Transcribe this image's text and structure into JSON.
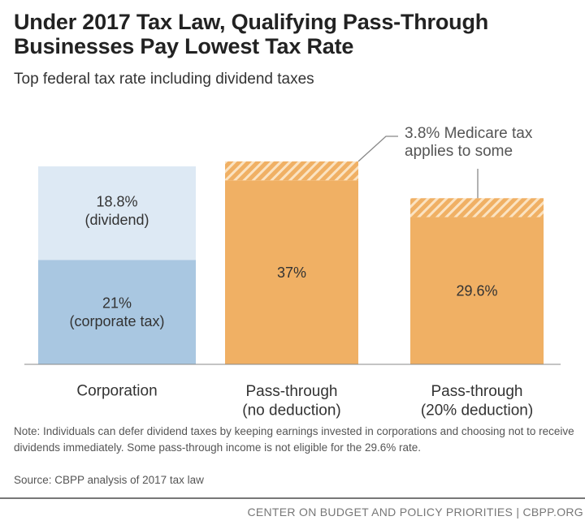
{
  "title_lines": [
    "Under 2017 Tax Law, Qualifying Pass-Through",
    "Businesses Pay Lowest Tax Rate"
  ],
  "subtitle": "Top federal tax rate including dividend taxes",
  "chart_data": {
    "type": "bar",
    "stacked": true,
    "title": "Under 2017 Tax Law, Qualifying Pass-Through Businesses Pay Lowest Tax Rate",
    "subtitle": "Top federal tax rate including dividend taxes",
    "ylim": [
      0,
      41
    ],
    "grid": false,
    "categories": [
      [
        "Corporation"
      ],
      [
        "Pass-through",
        "(no deduction)"
      ],
      [
        "Pass-through",
        "(20% deduction)"
      ]
    ],
    "bars": [
      {
        "segments": [
          {
            "value": 21,
            "label": [
              "21%",
              "(corporate tax)"
            ],
            "color": "#a9c7e1",
            "pattern": "solid"
          },
          {
            "value": 18.8,
            "label": [
              "18.8%",
              "(dividend)"
            ],
            "color": "#dde9f4",
            "pattern": "solid"
          }
        ]
      },
      {
        "segments": [
          {
            "value": 37,
            "label": [
              "37%"
            ],
            "color": "#f0b064",
            "pattern": "solid"
          },
          {
            "value": 3.8,
            "label": [],
            "color": "#f0b064",
            "pattern": "hatched"
          }
        ]
      },
      {
        "segments": [
          {
            "value": 29.6,
            "label": [
              "29.6%"
            ],
            "color": "#f0b064",
            "pattern": "solid"
          },
          {
            "value": 3.8,
            "label": [],
            "color": "#f0b064",
            "pattern": "hatched"
          }
        ]
      }
    ],
    "annotation": [
      "3.8% Medicare tax",
      "applies to some"
    ]
  },
  "note": "Note: Individuals can defer dividend taxes by keeping earnings invested in corporations and choosing not to receive dividends immediately. Some pass-through income is not eligible for the 29.6% rate.",
  "source": "Source: CBPP analysis of 2017 tax law",
  "footer": "CENTER ON BUDGET AND POLICY PRIORITIES | CBPP.ORG"
}
